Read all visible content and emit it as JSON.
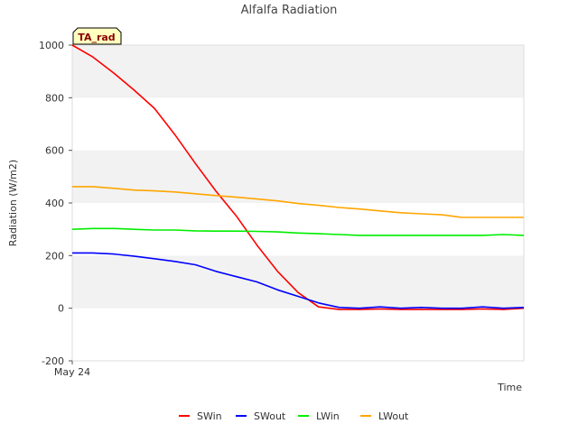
{
  "chart_data": {
    "type": "line",
    "title": "Alfalfa Radiation",
    "xlabel": "Time",
    "ylabel": "Radiation (W/m2)",
    "ylim": [
      -200,
      1000
    ],
    "yticks": [
      -200,
      0,
      200,
      400,
      600,
      800,
      1000
    ],
    "xlim": [
      0,
      22
    ],
    "x_tick_label": "May 24",
    "x_tick_value": 0,
    "badge": "TA_rad",
    "x": [
      0,
      1,
      2,
      3,
      4,
      5,
      6,
      7,
      8,
      9,
      10,
      11,
      12,
      13,
      14,
      15,
      16,
      17,
      18,
      19,
      20,
      21,
      22
    ],
    "series": [
      {
        "name": "SWin",
        "color": "#ff0000",
        "values": [
          1000,
          955,
          895,
          830,
          760,
          660,
          550,
          445,
          350,
          240,
          140,
          60,
          5,
          -5,
          -5,
          -3,
          -5,
          -5,
          -5,
          -5,
          -3,
          -5,
          0
        ]
      },
      {
        "name": "SWout",
        "color": "#0000ff",
        "values": [
          210,
          210,
          206,
          198,
          188,
          178,
          165,
          140,
          120,
          100,
          70,
          45,
          20,
          3,
          0,
          5,
          0,
          3,
          0,
          0,
          5,
          0,
          3
        ]
      },
      {
        "name": "LWin",
        "color": "#00ee00",
        "values": [
          300,
          303,
          303,
          300,
          297,
          297,
          294,
          293,
          293,
          292,
          290,
          286,
          283,
          280,
          277,
          277,
          277,
          277,
          277,
          277,
          277,
          280,
          277
        ]
      },
      {
        "name": "LWout",
        "color": "#ffa500",
        "values": [
          462,
          462,
          456,
          449,
          446,
          442,
          435,
          428,
          422,
          415,
          408,
          398,
          391,
          383,
          377,
          370,
          363,
          359,
          355,
          345,
          345,
          345,
          345
        ]
      }
    ],
    "legend_position": "bottom"
  }
}
